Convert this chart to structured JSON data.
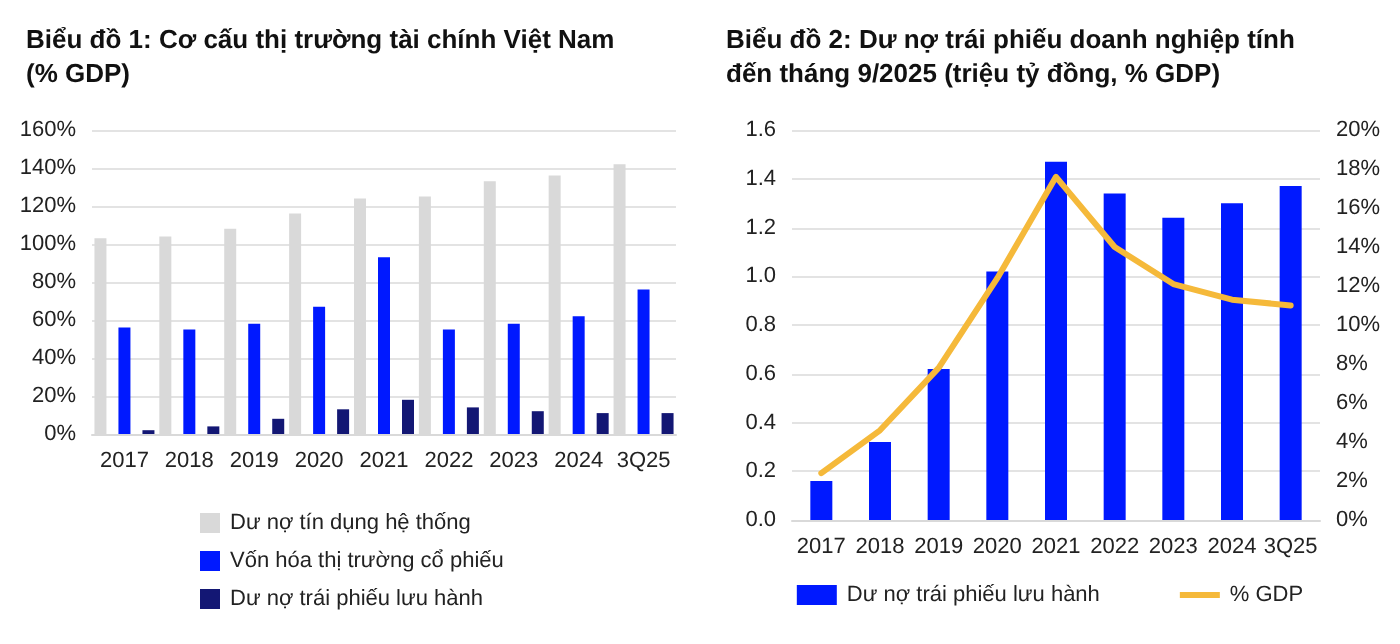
{
  "chart_data": [
    {
      "type": "bar",
      "title": "Biểu đồ 1: Cơ cấu thị trường tài chính Việt Nam\n(% GDP)",
      "categories": [
        "2017",
        "2018",
        "2019",
        "2020",
        "2021",
        "2022",
        "2023",
        "2024",
        "3Q25"
      ],
      "series": [
        {
          "name": "Dư nợ tín dụng hệ thống",
          "color": "#d9d9d9",
          "values": [
            103,
            104,
            108,
            116,
            124,
            125,
            133,
            136,
            142
          ]
        },
        {
          "name": "Vốn hóa thị trường cổ phiếu",
          "color": "#0019ff",
          "values": [
            56,
            55,
            58,
            67,
            93,
            55,
            58,
            62,
            76
          ]
        },
        {
          "name": "Dư nợ trái phiếu lưu hành",
          "color": "#131774",
          "values": [
            2,
            4,
            8,
            13,
            18,
            14,
            12,
            11,
            11
          ]
        }
      ],
      "ylim": [
        0,
        160
      ],
      "yticks": [
        {
          "value": 0,
          "label": "0%"
        },
        {
          "value": 20,
          "label": "20%"
        },
        {
          "value": 40,
          "label": "40%"
        },
        {
          "value": 60,
          "label": "60%"
        },
        {
          "value": 80,
          "label": "80%"
        },
        {
          "value": 100,
          "label": "100%"
        },
        {
          "value": 120,
          "label": "120%"
        },
        {
          "value": 140,
          "label": "140%"
        },
        {
          "value": 160,
          "label": "160%"
        }
      ],
      "grid": "y",
      "legend": "bottom"
    },
    {
      "type": "bar",
      "title": "Biểu đồ 2: Dư nợ trái phiếu doanh nghiệp tính\nđến tháng 9/2025 (triệu tỷ đồng, % GDP)",
      "categories": [
        "2017",
        "2018",
        "2019",
        "2020",
        "2021",
        "2022",
        "2023",
        "2024",
        "3Q25"
      ],
      "series": [
        {
          "name": "Dư nợ trái phiếu lưu hành",
          "color": "#0019ff",
          "values": [
            0.16,
            0.32,
            0.62,
            1.02,
            1.47,
            1.34,
            1.24,
            1.3,
            1.37
          ]
        },
        {
          "name": "% GDP",
          "type": "line",
          "axis": "y2",
          "color": "#f5b93a",
          "values": [
            2.4,
            4.6,
            7.8,
            12.4,
            17.6,
            14.0,
            12.1,
            11.3,
            11.0
          ]
        }
      ],
      "ylim": [
        0,
        1.6
      ],
      "yticks": [
        {
          "value": 0,
          "label": "0.0"
        },
        {
          "value": 0.2,
          "label": "0.2"
        },
        {
          "value": 0.4,
          "label": "0.4"
        },
        {
          "value": 0.6,
          "label": "0.6"
        },
        {
          "value": 0.8,
          "label": "0.8"
        },
        {
          "value": 1.0,
          "label": "1.0"
        },
        {
          "value": 1.2,
          "label": "1.2"
        },
        {
          "value": 1.4,
          "label": "1.4"
        },
        {
          "value": 1.6,
          "label": "1.6"
        }
      ],
      "y2lim": [
        0,
        20
      ],
      "y2ticks": [
        {
          "value": 0,
          "label": "0%"
        },
        {
          "value": 2,
          "label": "2%"
        },
        {
          "value": 4,
          "label": "4%"
        },
        {
          "value": 6,
          "label": "6%"
        },
        {
          "value": 8,
          "label": "8%"
        },
        {
          "value": 10,
          "label": "10%"
        },
        {
          "value": 12,
          "label": "12%"
        },
        {
          "value": 14,
          "label": "14%"
        },
        {
          "value": 16,
          "label": "16%"
        },
        {
          "value": 18,
          "label": "18%"
        },
        {
          "value": 20,
          "label": "20%"
        }
      ],
      "grid": "y",
      "legend": "bottom",
      "marker": "none"
    }
  ]
}
